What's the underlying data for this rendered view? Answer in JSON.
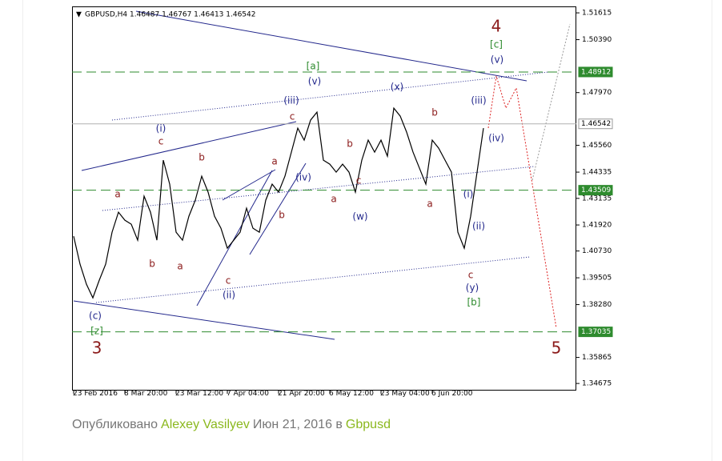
{
  "chart_data": {
    "type": "line",
    "title": "GBPUSD,H4  1.46487 1.46767 1.46413 1.46542",
    "categories": [
      "23 Feb 2016",
      null,
      null,
      null,
      null,
      null,
      null,
      null,
      "8 Mar 20:00",
      null,
      null,
      null,
      null,
      null,
      null,
      null,
      "23 Mar 12:00",
      null,
      null,
      null,
      null,
      null,
      null,
      null,
      "7 Apr 04:00",
      null,
      null,
      null,
      null,
      null,
      null,
      null,
      "21 Apr 20:00",
      null,
      null,
      null,
      null,
      null,
      null,
      null,
      "6 May 12:00",
      null,
      null,
      null,
      null,
      null,
      null,
      null,
      "23 May 04:00",
      null,
      null,
      null,
      null,
      null,
      null,
      null,
      "6 Jun 20:00",
      null,
      null,
      null,
      null,
      null,
      null,
      null,
      null
    ],
    "series": [
      {
        "name": "GBPUSD",
        "color": "#000000",
        "values": [
          1.41406,
          1.40126,
          1.39211,
          1.38589,
          1.39394,
          1.40126,
          1.41589,
          1.42504,
          1.42138,
          1.41955,
          1.41223,
          1.43236,
          1.42504,
          1.41223,
          1.44882,
          1.43785,
          1.41589,
          1.41223,
          1.42321,
          1.43053,
          1.44151,
          1.43419,
          1.42321,
          1.41772,
          1.40858,
          1.41223,
          1.41589,
          1.42687,
          1.41772,
          1.41589,
          1.43053,
          1.43785,
          1.43419,
          1.44151,
          1.45248,
          1.46346,
          1.45797,
          1.46712,
          1.47078,
          1.44882,
          1.44699,
          1.44334,
          1.44699,
          1.44334,
          1.43419,
          1.44882,
          1.45797,
          1.45248,
          1.45797,
          1.45065,
          1.47261,
          1.46895,
          1.46163,
          1.45248,
          1.44517,
          1.43785,
          1.45797,
          1.45431,
          1.44882,
          1.44334,
          1.41589,
          1.40858,
          1.42321,
          1.44334,
          1.46346
        ]
      }
    ],
    "ylim": [
      1.3435,
      1.5191
    ],
    "yticks": [
      1.51615,
      {
        "value": 1.5039,
        "label": "1.50390"
      },
      {
        "value": 1.4797,
        "label": "1.47970"
      },
      {
        "value": 1.4556,
        "label": "1.45560"
      },
      1.44335,
      1.43135,
      {
        "value": 1.4192,
        "label": "1.41920"
      },
      {
        "value": 1.4073,
        "label": "1.40730"
      },
      1.39505,
      {
        "value": 1.3828,
        "label": "1.38280"
      },
      1.35865,
      1.34675
    ],
    "levels": [
      {
        "value": 1.48912,
        "color": "#2e8b2e"
      },
      {
        "value": 1.46542,
        "color": "#b0b0b0"
      },
      {
        "value": 1.43509,
        "color": "#2e8b2e"
      },
      {
        "value": 1.37035,
        "color": "#2e8b2e"
      }
    ],
    "annotations": [
      {
        "text": "(c)",
        "color": "#23288c"
      },
      {
        "text": "[z]",
        "color": "#2e8b2e"
      },
      {
        "text": "3",
        "color": "#8b1a1a"
      },
      {
        "text": "a",
        "color": "#8b1a1a"
      },
      {
        "text": "c",
        "color": "#8b1a1a"
      },
      {
        "text": "(i)",
        "color": "#23288c"
      },
      {
        "text": "b",
        "color": "#8b1a1a"
      },
      {
        "text": "a",
        "color": "#8b1a1a"
      },
      {
        "text": "b",
        "color": "#8b1a1a"
      },
      {
        "text": "c",
        "color": "#8b1a1a"
      },
      {
        "text": "(ii)",
        "color": "#23288c"
      },
      {
        "text": "a",
        "color": "#8b1a1a"
      },
      {
        "text": "b",
        "color": "#8b1a1a"
      },
      {
        "text": "(iii)",
        "color": "#23288c"
      },
      {
        "text": "c",
        "color": "#8b1a1a"
      },
      {
        "text": "(iv)",
        "color": "#23288c"
      },
      {
        "text": "[a]",
        "color": "#2e8b2e"
      },
      {
        "text": "(v)",
        "color": "#23288c"
      },
      {
        "text": "a",
        "color": "#8b1a1a"
      },
      {
        "text": "b",
        "color": "#8b1a1a"
      },
      {
        "text": "c",
        "color": "#8b1a1a"
      },
      {
        "text": "(w)",
        "color": "#23288c"
      },
      {
        "text": "(x)",
        "color": "#23288c"
      },
      {
        "text": "b",
        "color": "#8b1a1a"
      },
      {
        "text": "a",
        "color": "#8b1a1a"
      },
      {
        "text": "(i)",
        "color": "#23288c"
      },
      {
        "text": "(ii)",
        "color": "#23288c"
      },
      {
        "text": "c",
        "color": "#8b1a1a"
      },
      {
        "text": "(y)",
        "color": "#23288c"
      },
      {
        "text": "[b]",
        "color": "#2e8b2e"
      },
      {
        "text": "(iii)",
        "color": "#23288c"
      },
      {
        "text": "(iv)",
        "color": "#23288c"
      },
      {
        "text": "(v)",
        "color": "#23288c"
      },
      {
        "text": "[c]",
        "color": "#2e8b2e"
      },
      {
        "text": "4",
        "color": "#8b1a1a"
      },
      {
        "text": "5",
        "color": "#8b1a1a"
      }
    ]
  },
  "footer": {
    "prefix": "Опубликовано",
    "author": "Alexey Vasilyev",
    "date": "Июн 21, 2016 в",
    "tag": "Gbpusd"
  }
}
